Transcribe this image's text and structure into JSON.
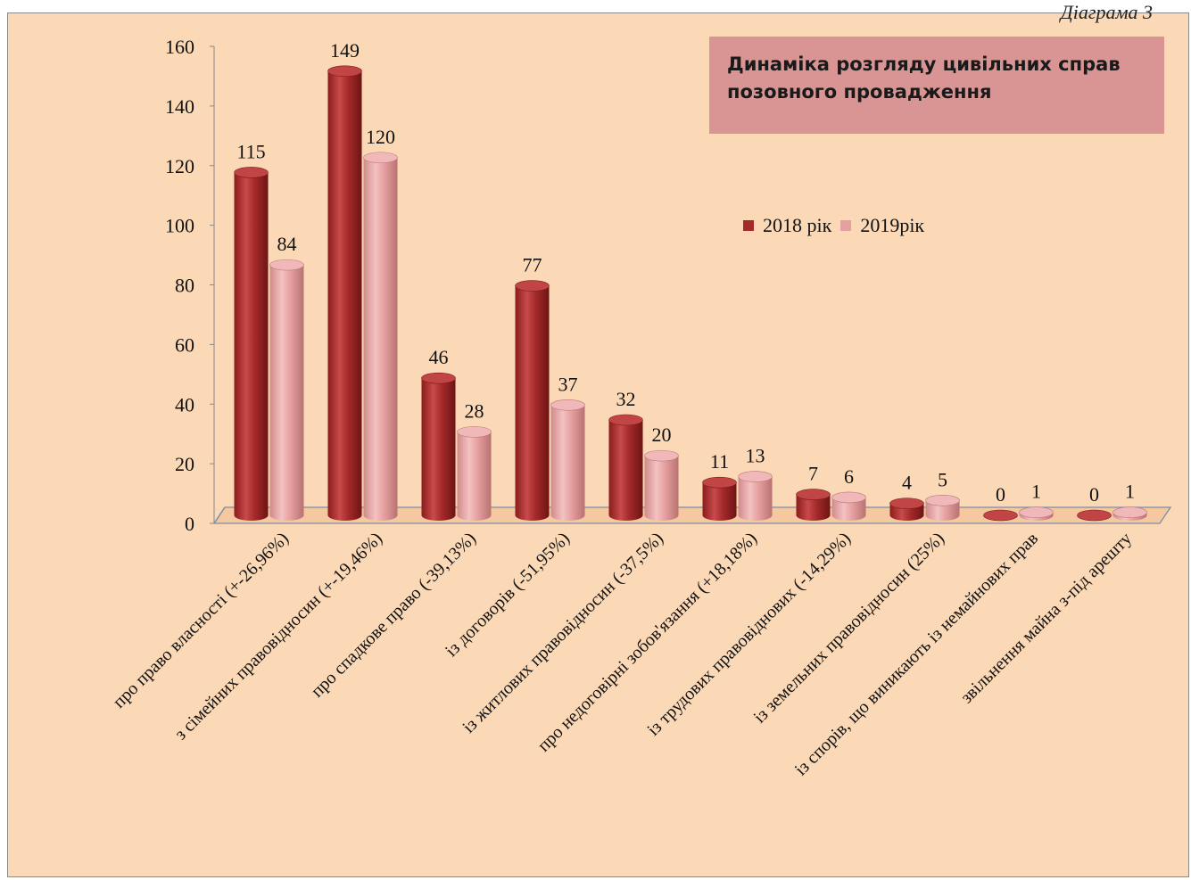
{
  "corner_caption": "Діаграма 3",
  "chart_data": {
    "type": "bar",
    "title": "Динаміка розгляду цивільних справ позовного провадження",
    "categories": [
      "про право власності (+-26,96%)",
      "з сімейних правовідносин (+-19,46%)",
      "про спадкове право (-39,13%)",
      "із договорів (-51,95%)",
      "із житлових правовідносин (-37,5%)",
      "про недоговірні зобов'язання (+18,18%)",
      "із трудових правовіднових (-14,29%)",
      "із земельних правовідносин (25%)",
      "із спорів, що виникають із немайнових прав",
      "звільнення майна з-під арешту"
    ],
    "series": [
      {
        "name": "2018 рік",
        "values": [
          115,
          149,
          46,
          77,
          32,
          11,
          7,
          4,
          0,
          0
        ],
        "color": "#a52a2a"
      },
      {
        "name": "2019рік",
        "values": [
          84,
          120,
          28,
          37,
          20,
          13,
          6,
          5,
          1,
          1
        ],
        "color": "#e6a0a0"
      }
    ],
    "ylim": [
      0,
      160
    ],
    "yticks": [
      0,
      20,
      40,
      60,
      80,
      100,
      120,
      140,
      160
    ],
    "grid": false,
    "legend_position": "right"
  }
}
